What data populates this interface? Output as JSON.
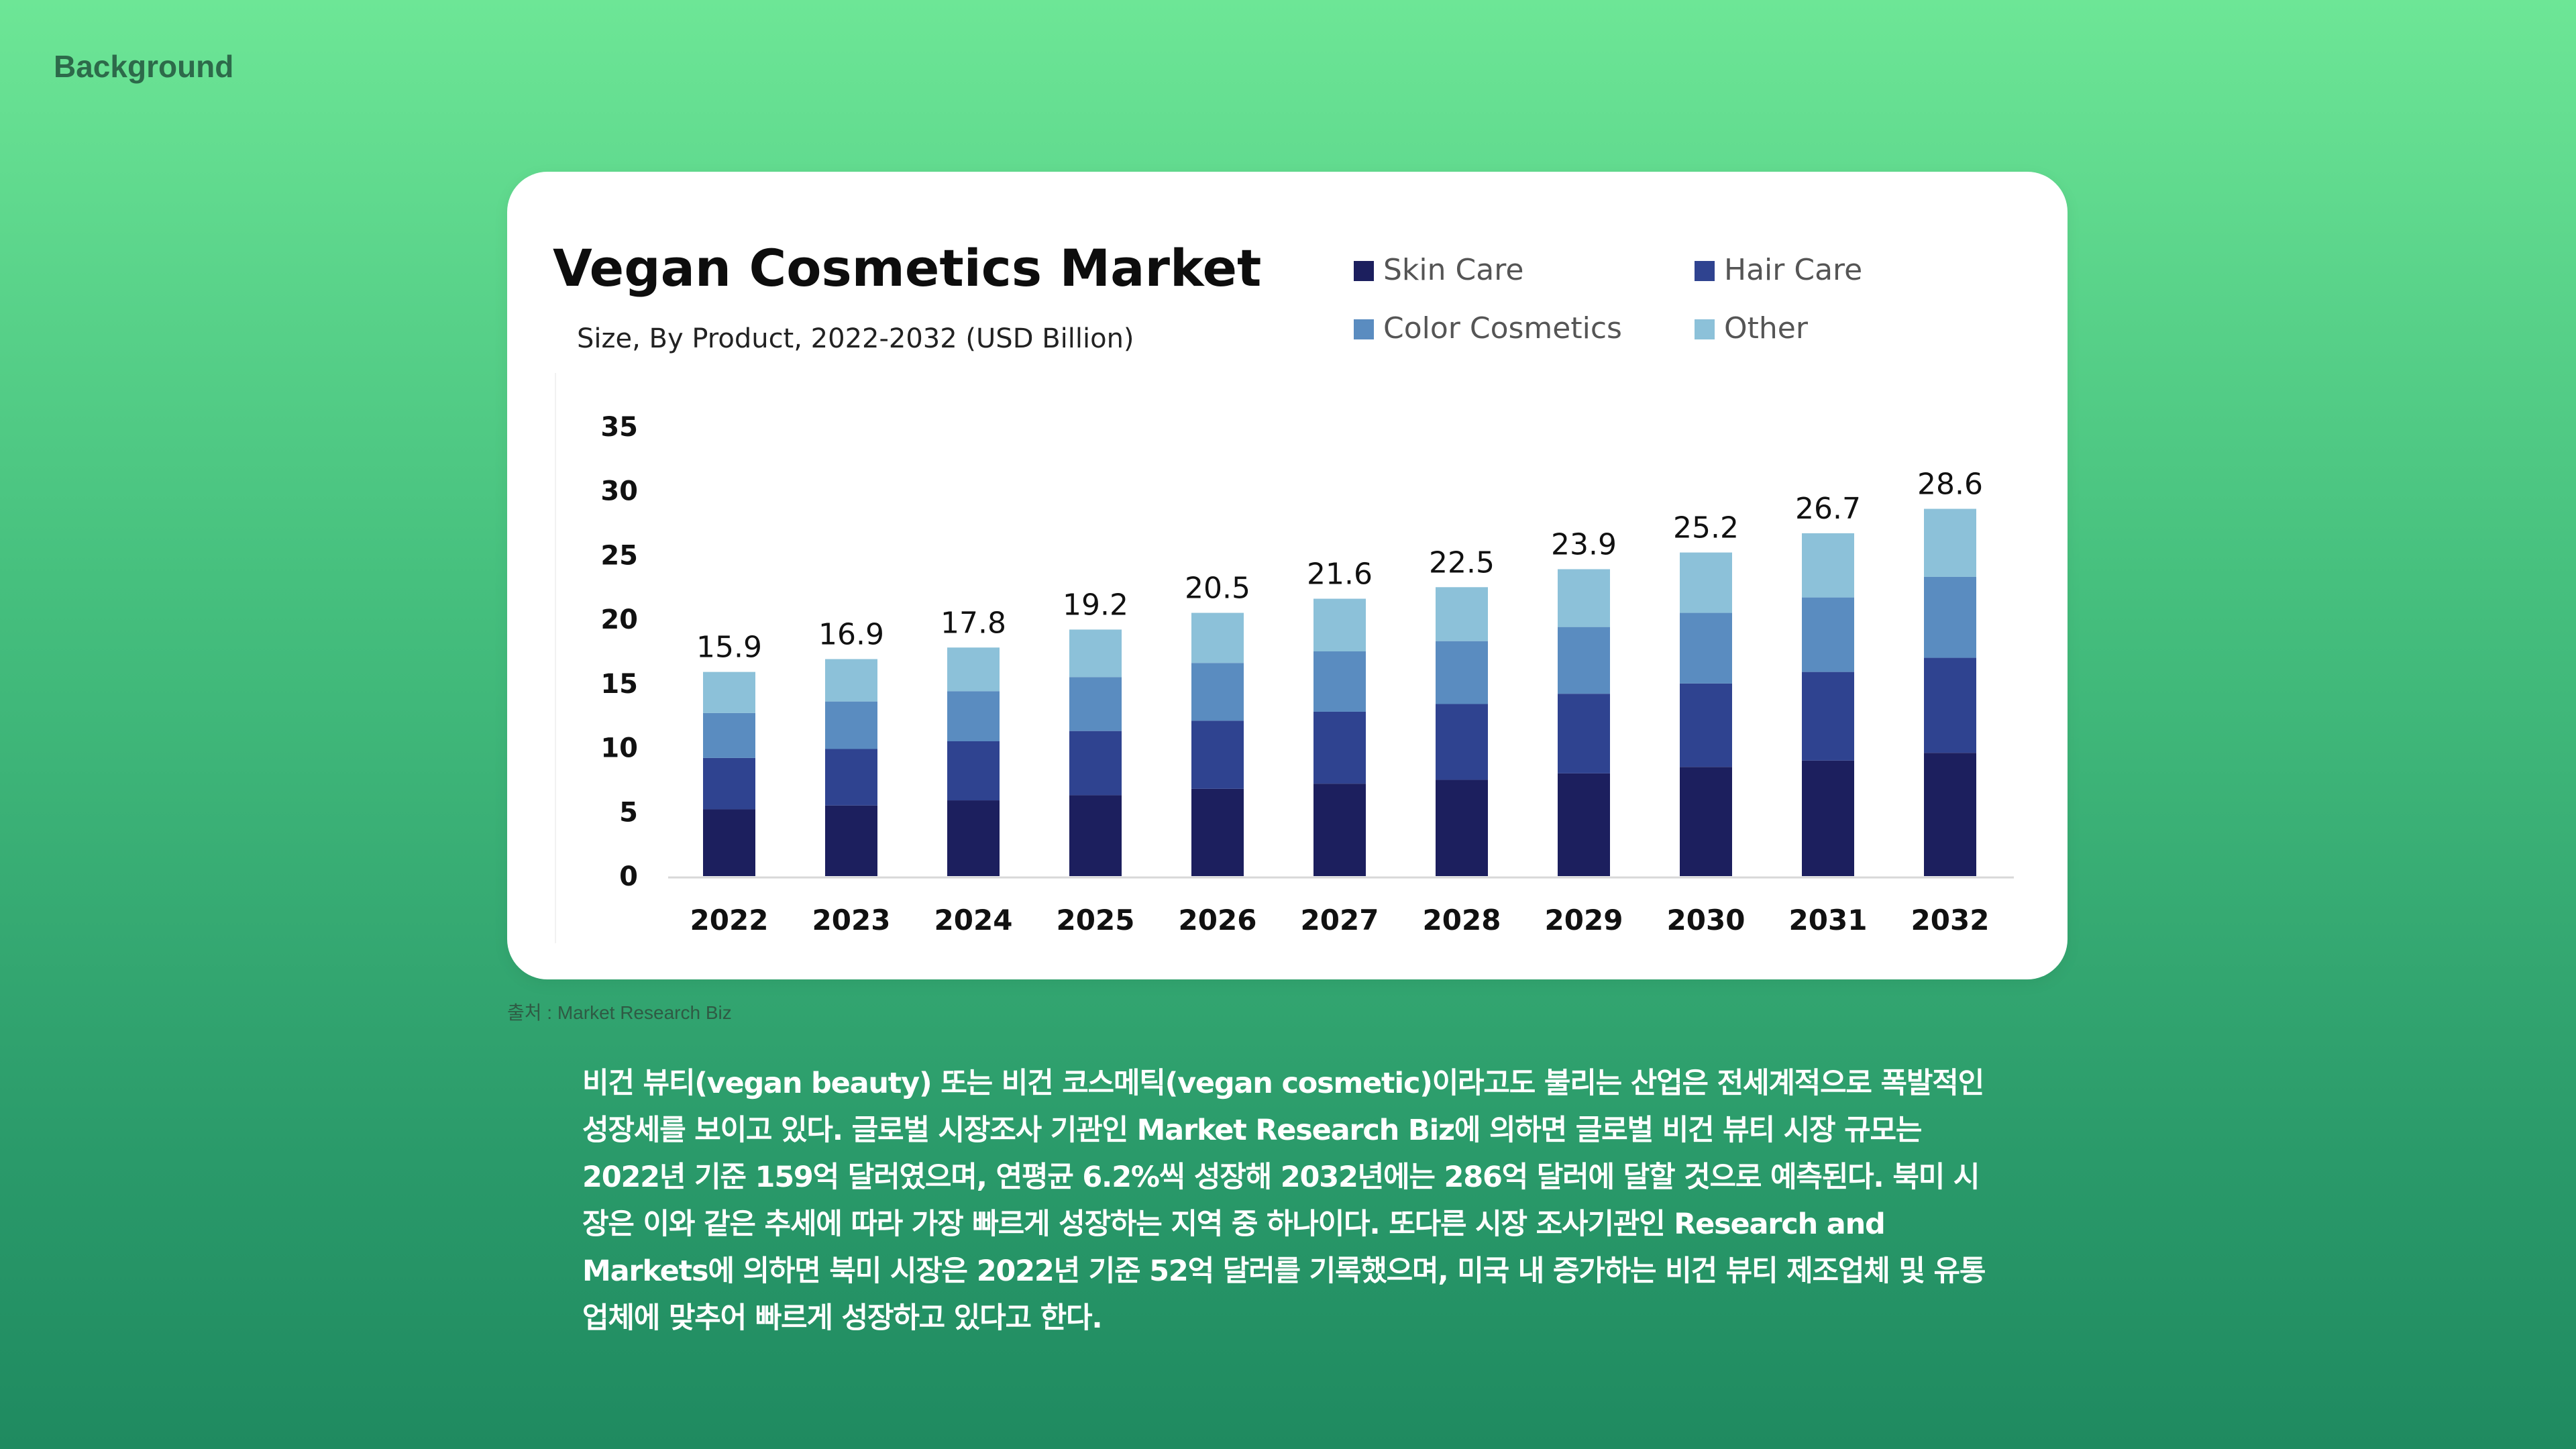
{
  "header": {
    "section_label": "Background"
  },
  "chart_data": {
    "type": "bar",
    "stacked": true,
    "title": "Vegan Cosmetics Market",
    "subtitle": "Size, By Product, 2022-2032 (USD Billion)",
    "categories": [
      "2022",
      "2023",
      "2024",
      "2025",
      "2026",
      "2027",
      "2028",
      "2029",
      "2030",
      "2031",
      "2032"
    ],
    "totals": [
      15.9,
      16.9,
      17.8,
      19.2,
      20.5,
      21.6,
      22.5,
      23.9,
      25.2,
      26.7,
      28.6
    ],
    "total_labels": [
      "15.9",
      "16.9",
      "17.8",
      "19.2",
      "20.5",
      "21.6",
      "22.5",
      "23.9",
      "25.2",
      "26.7",
      "28.6"
    ],
    "series": [
      {
        "name": "Skin Care",
        "color": "#1c1f5e",
        "values": [
          5.2,
          5.5,
          5.9,
          6.3,
          6.8,
          7.2,
          7.5,
          8.0,
          8.5,
          9.0,
          9.6
        ]
      },
      {
        "name": "Hair Care",
        "color": "#2f4390",
        "values": [
          4.0,
          4.4,
          4.6,
          5.0,
          5.3,
          5.6,
          5.9,
          6.2,
          6.5,
          6.9,
          7.4
        ]
      },
      {
        "name": "Color Cosmetics",
        "color": "#5a8cc0",
        "values": [
          3.5,
          3.7,
          3.9,
          4.2,
          4.5,
          4.7,
          4.9,
          5.2,
          5.5,
          5.8,
          6.3
        ]
      },
      {
        "name": "Other",
        "color": "#8cc1d9",
        "values": [
          3.2,
          3.3,
          3.4,
          3.7,
          3.9,
          4.1,
          4.2,
          4.5,
          4.7,
          5.0,
          5.3
        ]
      }
    ],
    "ylim": [
      0,
      35
    ],
    "yticks": [
      0,
      5,
      10,
      15,
      20,
      25,
      30,
      35
    ],
    "legend_position": "top-right",
    "xlabel": "",
    "ylabel": ""
  },
  "source": "출처 : Market Research Biz",
  "description": "비건 뷰티(vegan beauty) 또는 비건 코스메틱(vegan cosmetic)이라고도 불리는 산업은 전세계적으로 폭발적인 성장세를 보이고 있다. 글로벌 시장조사 기관인 Market Research Biz에 의하면 글로벌 비건 뷰티 시장 규모는 2022년 기준 159억 달러였으며, 연평균 6.2%씩 성장해 2032년에는 286억 달러에 달할 것으로 예측된다. 북미 시장은 이와 같은 추세에 따라 가장 빠르게 성장하는 지역 중 하나이다. 또다른 시장 조사기관인 Research and Markets에 의하면 북미 시장은 2022년 기준 52억 달러를 기록했으며, 미국 내 증가하는 비건 뷰티 제조업체 및 유통업체에 맞추어 빠르게 성장하고 있다고 한다."
}
